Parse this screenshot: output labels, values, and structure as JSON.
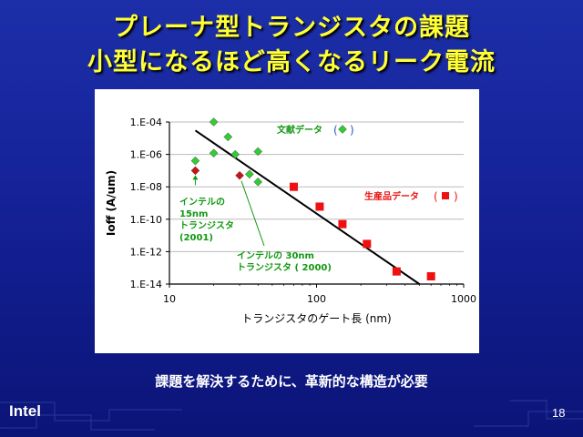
{
  "slide": {
    "title_line1": "プレーナ型トランジスタの課題",
    "title_line2": "小型になるほど高くなるリーク電流",
    "caption": "課題を解決するために、革新的な構造が必要",
    "logo": "Intel",
    "page_number": "18",
    "title_color": "#ffff33"
  },
  "chart_data": {
    "type": "scatter",
    "xlabel": "トランジスタのゲート長 (nm)",
    "ylabel": "Ioff (A/um)",
    "x_scale": "log",
    "y_scale": "log",
    "xlim": [
      10,
      1000
    ],
    "ylim": [
      1e-14,
      0.0001
    ],
    "x_ticks": [
      "10",
      "100",
      "1000"
    ],
    "y_ticks": [
      "1.E-14",
      "1.E-12",
      "1.E-10",
      "1.E-08",
      "1.E-06",
      "1.E-04"
    ],
    "grid": "horizontal",
    "series": [
      {
        "name": "文献データ",
        "marker": "diamond",
        "color": "#33cc33",
        "points": [
          {
            "x": 20,
            "y": 0.0001
          },
          {
            "x": 15,
            "y": 4e-07
          },
          {
            "x": 20,
            "y": 1.2e-06
          },
          {
            "x": 25,
            "y": 1.2e-05
          },
          {
            "x": 28,
            "y": 1e-06
          },
          {
            "x": 35,
            "y": 6e-08
          },
          {
            "x": 40,
            "y": 1.5e-06
          },
          {
            "x": 40,
            "y": 2e-08
          }
        ]
      },
      {
        "name": "生産品データ",
        "marker": "square",
        "color": "#ee1111",
        "points": [
          {
            "x": 70,
            "y": 1e-08
          },
          {
            "x": 105,
            "y": 6e-10
          },
          {
            "x": 150,
            "y": 5e-11
          },
          {
            "x": 220,
            "y": 3e-12
          },
          {
            "x": 350,
            "y": 6e-14
          },
          {
            "x": 600,
            "y": 3e-14
          }
        ]
      },
      {
        "name": "インテル",
        "marker": "diamond",
        "color": "#cc1111",
        "points": [
          {
            "x": 15,
            "y": 1e-07
          },
          {
            "x": 30,
            "y": 5e-08
          }
        ]
      }
    ],
    "trendline": {
      "x": [
        15,
        500
      ],
      "y": [
        3e-05,
        1e-14
      ]
    },
    "annotations": [
      {
        "lines": [
          "インテルの",
          "15nm",
          "トランジスタ",
          "(2001)"
        ],
        "color": "#119911"
      },
      {
        "lines": [
          "インテルの 30nm",
          "トランジスタ ( 2000)"
        ],
        "color": "#119911"
      }
    ],
    "legend_labels": [
      {
        "text": "文献データ",
        "color": "#119911"
      },
      {
        "text": "生産品データ",
        "color": "#ee1111"
      }
    ]
  }
}
